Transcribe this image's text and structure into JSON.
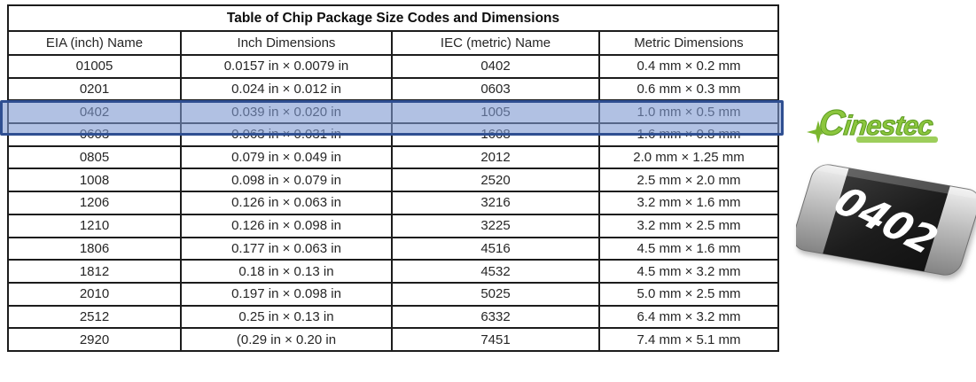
{
  "table": {
    "title": "Table of Chip Package Size Codes and Dimensions",
    "columns": [
      "EIA (inch) Name",
      "Inch Dimensions",
      "IEC (metric) Name",
      "Metric Dimensions"
    ],
    "rows": [
      [
        "01005",
        "0.0157 in × 0.0079 in",
        "0402",
        "0.4 mm × 0.2 mm"
      ],
      [
        "0201",
        "0.024 in × 0.012 in",
        "0603",
        "0.6 mm × 0.3 mm"
      ],
      [
        "0402",
        "0.039 in × 0.020 in",
        "1005",
        "1.0 mm × 0.5 mm"
      ],
      [
        "0603",
        "0.063 in × 0.031 in",
        "1608",
        "1.6 mm × 0.8 mm"
      ],
      [
        "0805",
        "0.079 in × 0.049 in",
        "2012",
        "2.0 mm × 1.25 mm"
      ],
      [
        "1008",
        "0.098 in × 0.079 in",
        "2520",
        "2.5 mm × 2.0 mm"
      ],
      [
        "1206",
        "0.126 in × 0.063 in",
        "3216",
        "3.2 mm × 1.6 mm"
      ],
      [
        "1210",
        "0.126 in × 0.098 in",
        "3225",
        "3.2 mm × 2.5 mm"
      ],
      [
        "1806",
        "0.177 in × 0.063 in",
        "4516",
        "4.5 mm × 1.6 mm"
      ],
      [
        "1812",
        "0.18 in × 0.13 in",
        "4532",
        "4.5 mm × 3.2 mm"
      ],
      [
        "2010",
        "0.197 in × 0.098 in",
        "5025",
        "5.0 mm × 2.5 mm"
      ],
      [
        "2512",
        "0.25 in × 0.13 in",
        "6332",
        "6.4 mm × 3.2 mm"
      ],
      [
        "2920",
        "(0.29 in × 0.20 in",
        "7451",
        "7.4 mm × 5.1 mm"
      ]
    ],
    "highlighted_row_index": 2,
    "highlighted_row_name": "0402"
  },
  "highlight": {
    "fill_color": "#7d98d1",
    "border_color": "#2f4f91"
  },
  "logo": {
    "text": "Cinestec",
    "color": "#8cc63e"
  },
  "chip": {
    "label": "0402",
    "body_color": "#1f1f1f",
    "cap_color": "#c2c2c2",
    "label_color": "#ffffff"
  }
}
